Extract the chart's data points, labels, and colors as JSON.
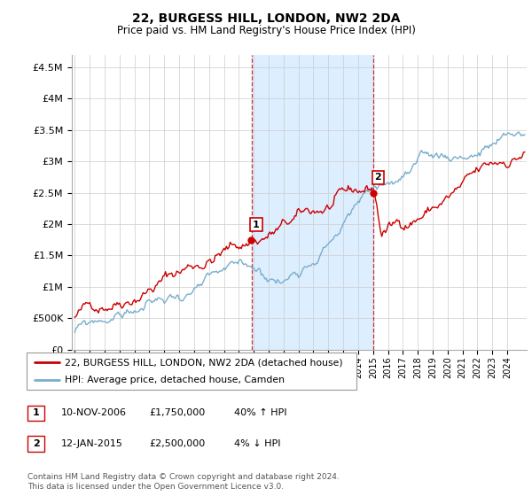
{
  "title": "22, BURGESS HILL, LONDON, NW2 2DA",
  "subtitle": "Price paid vs. HM Land Registry's House Price Index (HPI)",
  "ytick_values": [
    0,
    500000,
    1000000,
    1500000,
    2000000,
    2500000,
    3000000,
    3500000,
    4000000,
    4500000
  ],
  "ylim": [
    0,
    4700000
  ],
  "x_start_year": 1995,
  "x_end_year": 2025,
  "sale1_date": 2006.87,
  "sale1_price": 1750000,
  "sale2_date": 2015.04,
  "sale2_price": 2500000,
  "red_color": "#cc0000",
  "blue_color": "#7aadcc",
  "shade_color": "#ddeeff",
  "vline_color": "#cc0000",
  "legend_line1": "22, BURGESS HILL, LONDON, NW2 2DA (detached house)",
  "legend_line2": "HPI: Average price, detached house, Camden",
  "table_row1_num": "1",
  "table_row1_date": "10-NOV-2006",
  "table_row1_price": "£1,750,000",
  "table_row1_hpi": "40% ↑ HPI",
  "table_row2_num": "2",
  "table_row2_date": "12-JAN-2015",
  "table_row2_price": "£2,500,000",
  "table_row2_hpi": "4% ↓ HPI",
  "footer": "Contains HM Land Registry data © Crown copyright and database right 2024.\nThis data is licensed under the Open Government Licence v3.0."
}
